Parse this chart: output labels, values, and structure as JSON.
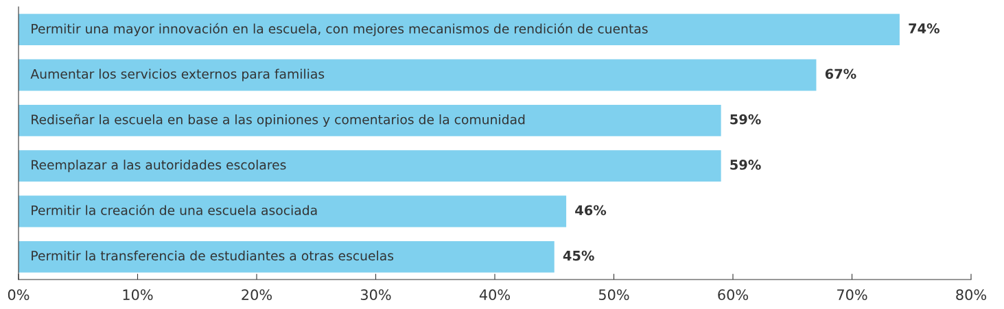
{
  "chart_data": {
    "type": "bar",
    "orientation": "horizontal",
    "categories": [
      "Permitir una mayor innovación en la escuela, con mejores mecanismos de rendición de cuentas",
      "Aumentar los servicios externos para familias",
      "Rediseñar la escuela en base a las opiniones y comentarios de la comunidad",
      "Reemplazar a las autoridades escolares",
      "Permitir la creación de una escuela asociada",
      "Permitir la transferencia de estudiantes a otras escuelas"
    ],
    "values": [
      74,
      67,
      59,
      59,
      46,
      45
    ],
    "value_labels": [
      "74%",
      "67%",
      "59%",
      "59%",
      "46%",
      "45%"
    ],
    "color": "#7fd0ee",
    "xlim": [
      0,
      80
    ],
    "xticks": [
      {
        "value": 0,
        "label": "0%"
      },
      {
        "value": 10,
        "label": "10%"
      },
      {
        "value": 20,
        "label": "20%"
      },
      {
        "value": 30,
        "label": "30%"
      },
      {
        "value": 40,
        "label": "40%"
      },
      {
        "value": 50,
        "label": "50%"
      },
      {
        "value": 60,
        "label": "60%"
      },
      {
        "value": 70,
        "label": "70%"
      },
      {
        "value": 80,
        "label": "80%"
      }
    ],
    "grid": false,
    "legend": false
  }
}
